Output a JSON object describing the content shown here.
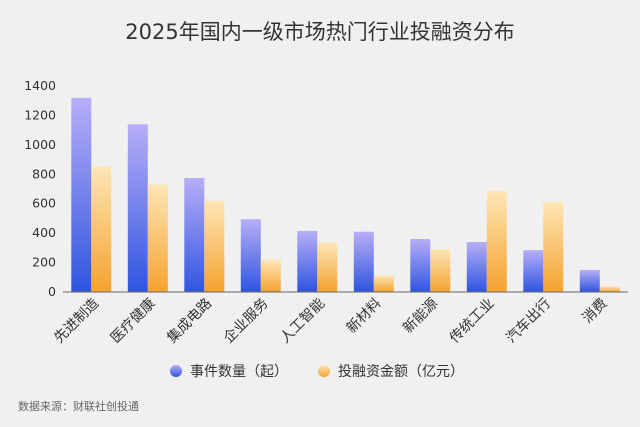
{
  "chart_data": {
    "type": "bar",
    "title": "2025年国内一级市场热门行业投融资分布",
    "categories": [
      "先进制造",
      "医疗健康",
      "集成电路",
      "企业服务",
      "人工智能",
      "新材料",
      "新能源",
      "传统工业",
      "汽车出行",
      "消费"
    ],
    "series": [
      {
        "name": "事件数量（起）",
        "values": [
          1320,
          1140,
          775,
          495,
          415,
          410,
          360,
          340,
          285,
          150
        ]
      },
      {
        "name": "投融资金额（亿元）",
        "values": [
          855,
          730,
          620,
          218,
          338,
          112,
          292,
          688,
          612,
          38
        ]
      }
    ],
    "ylim": [
      0,
      1400
    ],
    "yticks": [
      0,
      200,
      400,
      600,
      800,
      1000,
      1200,
      1400
    ],
    "grid": false,
    "legend_position": "bottom",
    "colors": {
      "series1_top": "#b7aef7",
      "series1_bottom": "#2f55e0",
      "series2_top": "#fde6b7",
      "series2_bottom": "#f4a32e",
      "axis": "#666666",
      "text": "#333333",
      "background": "#f0f0f0"
    }
  },
  "source_text": "数据来源：财联社创投通"
}
